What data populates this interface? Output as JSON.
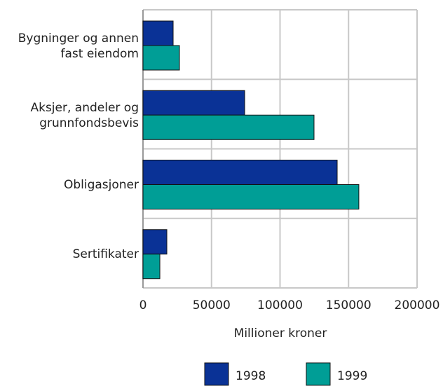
{
  "chart_data": {
    "type": "hbar",
    "xlabel": "Millioner kroner",
    "categories": [
      "Bygninger og annen\nfast eiendom",
      "Aksjer, andeler og\ngrunnfondsbevis",
      "Obligasjoner",
      "Sertifikater"
    ],
    "series": [
      {
        "name": "1998",
        "color": "#0a3296",
        "values": [
          22000,
          74200,
          141700,
          17400
        ]
      },
      {
        "name": "1999",
        "color": "#009e96",
        "values": [
          26600,
          124800,
          157500,
          12300
        ]
      }
    ],
    "xlim": [
      0,
      200000
    ],
    "xticks": [
      0,
      50000,
      100000,
      150000,
      200000
    ],
    "grid": true
  }
}
